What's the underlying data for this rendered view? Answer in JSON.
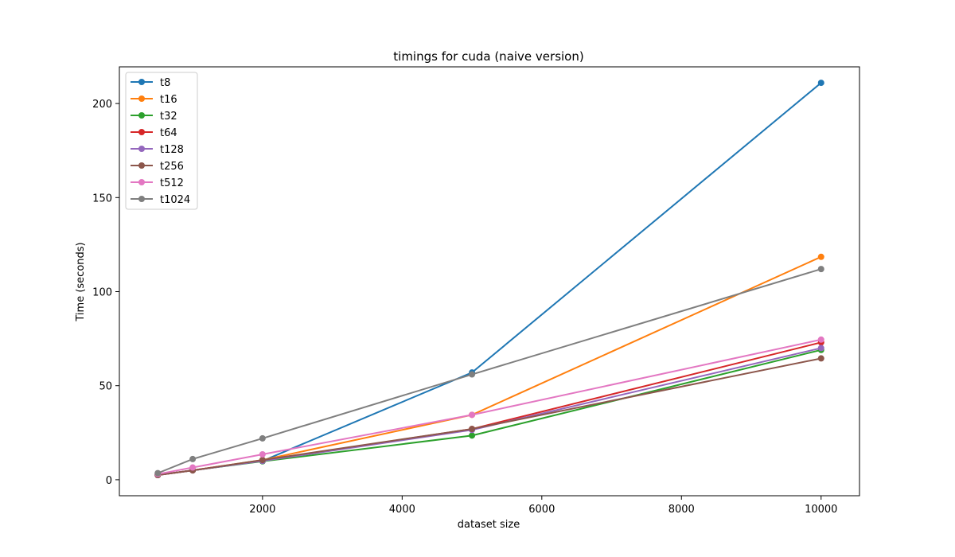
{
  "chart_data": {
    "type": "line",
    "title": "timings for cuda (naive version)",
    "xlabel": "dataset size",
    "ylabel": "Time (seconds)",
    "x": [
      500,
      1000,
      2000,
      5000,
      10000
    ],
    "xlim": [
      -50,
      10550
    ],
    "ylim": [
      -8.5,
      219.5
    ],
    "xticks": [
      2000,
      4000,
      6000,
      8000,
      10000
    ],
    "yticks": [
      0,
      50,
      100,
      150,
      200
    ],
    "grid": false,
    "legend_position": "top-left",
    "series": [
      {
        "name": "t8",
        "color": "#1f77b4",
        "values": [
          2.5,
          5.0,
          10.0,
          57.0,
          211.0
        ]
      },
      {
        "name": "t16",
        "color": "#ff7f0e",
        "values": [
          2.5,
          5.0,
          10.5,
          34.5,
          118.5
        ]
      },
      {
        "name": "t32",
        "color": "#2ca02c",
        "values": [
          2.5,
          5.0,
          9.8,
          23.5,
          69.0
        ]
      },
      {
        "name": "t64",
        "color": "#d62728",
        "values": [
          2.5,
          5.0,
          10.2,
          27.0,
          73.0
        ]
      },
      {
        "name": "t128",
        "color": "#9467bd",
        "values": [
          2.5,
          5.0,
          10.0,
          26.5,
          70.0
        ]
      },
      {
        "name": "t256",
        "color": "#8c564b",
        "values": [
          2.5,
          5.0,
          10.5,
          27.0,
          64.5
        ]
      },
      {
        "name": "t512",
        "color": "#e377c2",
        "values": [
          3.0,
          6.5,
          13.5,
          34.5,
          74.5
        ]
      },
      {
        "name": "t1024",
        "color": "#7f7f7f",
        "values": [
          3.5,
          11.0,
          22.0,
          56.0,
          112.0
        ]
      }
    ]
  }
}
